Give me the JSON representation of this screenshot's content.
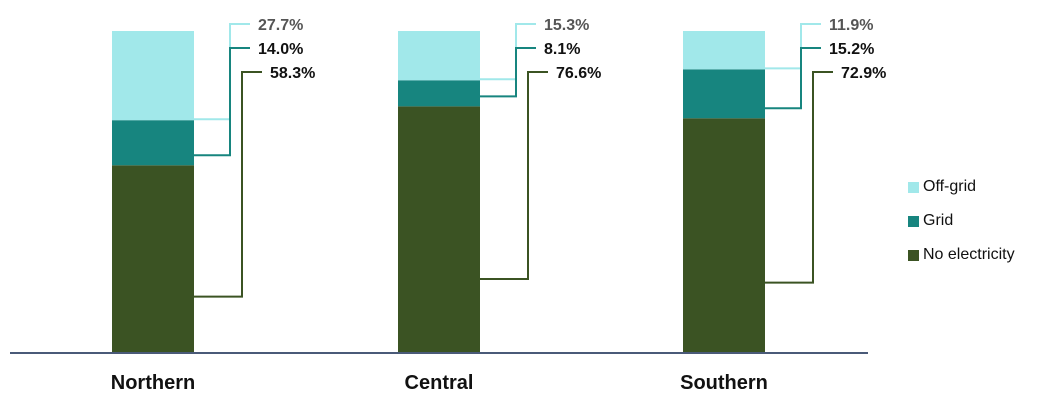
{
  "chart_data": {
    "type": "bar",
    "stacked": true,
    "percent_stacked": true,
    "categories": [
      "Northern",
      "Central",
      "Southern"
    ],
    "series": [
      {
        "name": "No electricity",
        "values": [
          58.3,
          76.6,
          72.9
        ],
        "labels": [
          "58.3%",
          "76.6%",
          "72.9%"
        ],
        "color": "#3b5323"
      },
      {
        "name": "Grid",
        "values": [
          14.0,
          8.1,
          15.2
        ],
        "labels": [
          "14.0%",
          "8.1%",
          "15.2%"
        ],
        "color": "#17857f"
      },
      {
        "name": "Off-grid",
        "values": [
          27.7,
          15.3,
          11.9
        ],
        "labels": [
          "27.7%",
          "15.3%",
          "11.9%"
        ],
        "color": "#a1e8ea"
      }
    ],
    "ylim": [
      0,
      100
    ],
    "grid": false,
    "legend_position": "right",
    "axis_color": "#4a5a78"
  }
}
